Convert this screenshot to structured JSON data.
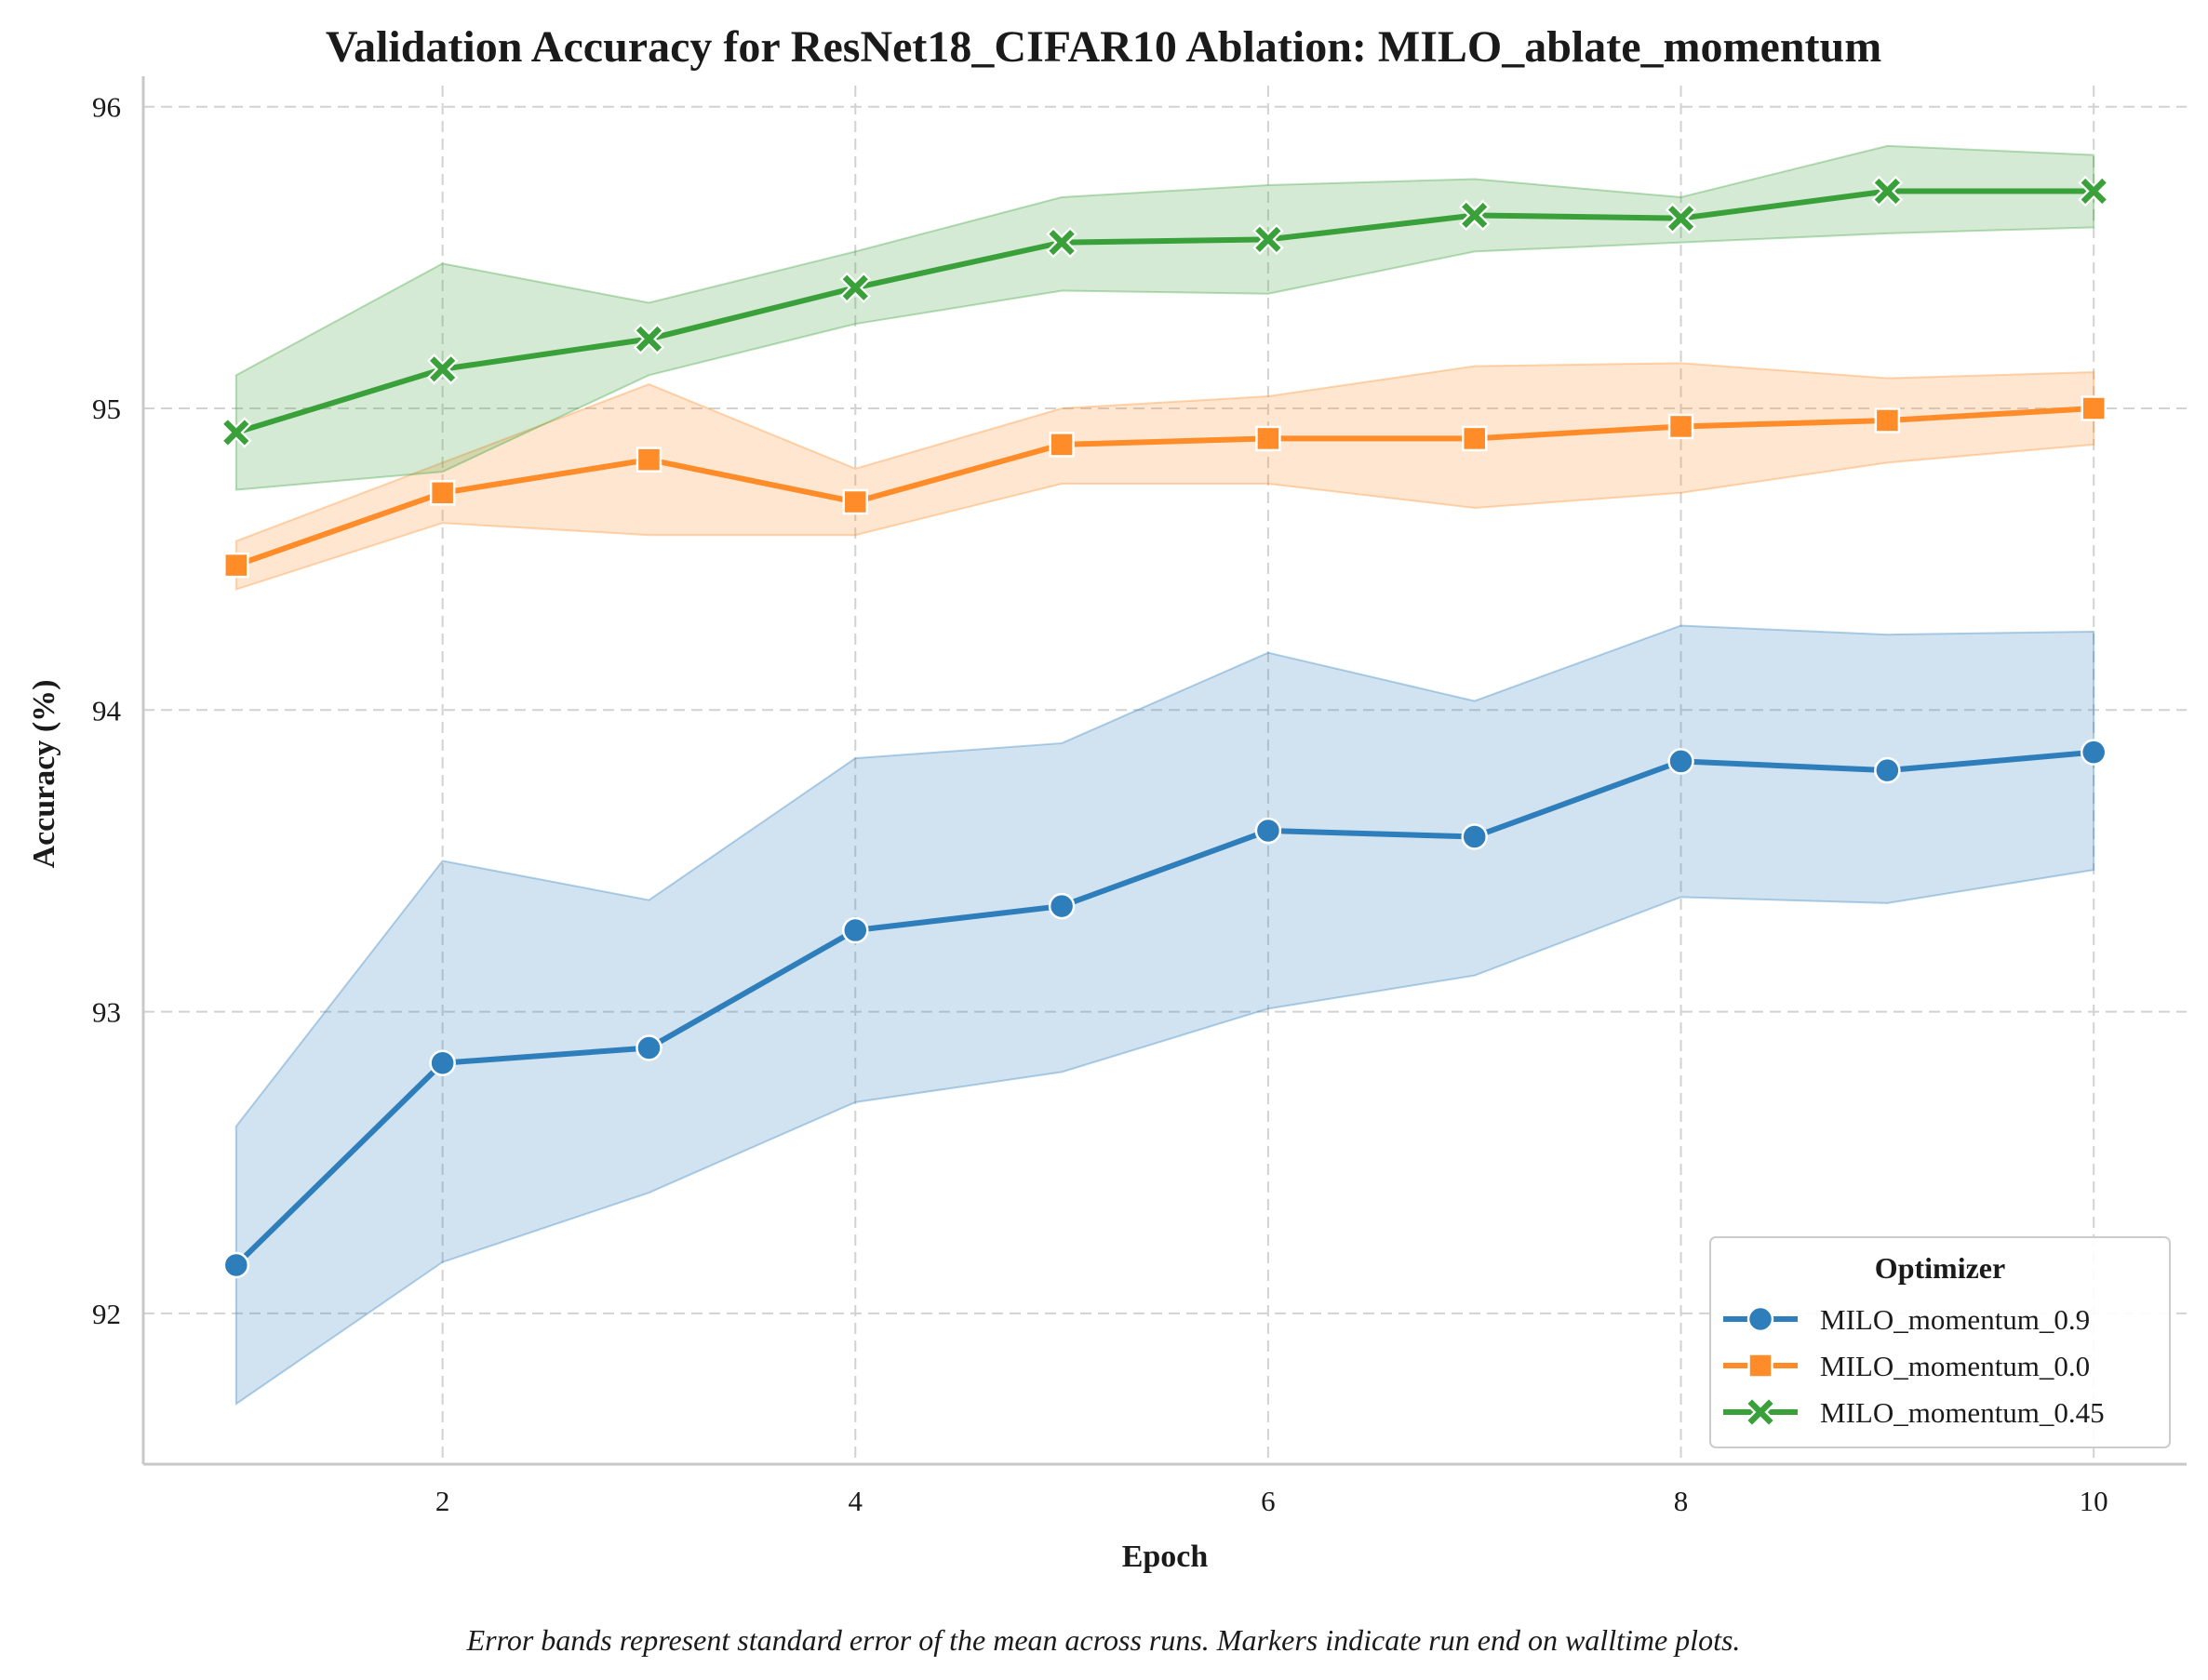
{
  "chart_data": {
    "type": "line",
    "title": "Validation Accuracy for ResNet18_CIFAR10 Ablation: MILO_ablate_momentum",
    "xlabel": "Epoch",
    "ylabel": "Accuracy (%)",
    "xlim": [
      0.55,
      10.45
    ],
    "ylim": [
      91.5,
      96.07
    ],
    "xticks": [
      2,
      4,
      6,
      8,
      10
    ],
    "yticks": [
      92,
      93,
      94,
      95,
      96
    ],
    "grid": true,
    "legend": {
      "title": "Optimizer",
      "position": "lower-right"
    },
    "x": [
      1,
      2,
      3,
      4,
      5,
      6,
      7,
      8,
      9,
      10
    ],
    "series": [
      {
        "name": "MILO_momentum_0.9",
        "color": "#2f7ebc",
        "marker": "circle",
        "values": [
          92.16,
          92.83,
          92.88,
          93.27,
          93.35,
          93.6,
          93.58,
          93.83,
          93.8,
          93.86
        ],
        "lower": [
          91.7,
          92.17,
          92.4,
          92.7,
          92.8,
          93.01,
          93.12,
          93.38,
          93.36,
          93.47
        ],
        "upper": [
          92.62,
          93.5,
          93.37,
          93.84,
          93.89,
          94.19,
          94.03,
          94.28,
          94.25,
          94.26
        ]
      },
      {
        "name": "MILO_momentum_0.0",
        "color": "#ff8c28",
        "marker": "square",
        "values": [
          94.48,
          94.72,
          94.83,
          94.69,
          94.88,
          94.9,
          94.9,
          94.94,
          94.96,
          95.0
        ],
        "lower": [
          94.4,
          94.62,
          94.58,
          94.58,
          94.75,
          94.75,
          94.67,
          94.72,
          94.82,
          94.88
        ],
        "upper": [
          94.56,
          94.82,
          95.08,
          94.8,
          95.0,
          95.04,
          95.14,
          95.15,
          95.1,
          95.12
        ]
      },
      {
        "name": "MILO_momentum_0.45",
        "color": "#3aa13a",
        "marker": "x",
        "values": [
          94.92,
          95.13,
          95.23,
          95.4,
          95.55,
          95.56,
          95.64,
          95.63,
          95.72,
          95.72
        ],
        "lower": [
          94.73,
          94.79,
          95.11,
          95.28,
          95.39,
          95.38,
          95.52,
          95.55,
          95.58,
          95.6
        ],
        "upper": [
          95.11,
          95.48,
          95.35,
          95.52,
          95.7,
          95.74,
          95.76,
          95.7,
          95.87,
          95.84
        ]
      }
    ],
    "footnote": "Error bands represent standard error of the mean across runs. Markers indicate run end on walltime plots."
  }
}
